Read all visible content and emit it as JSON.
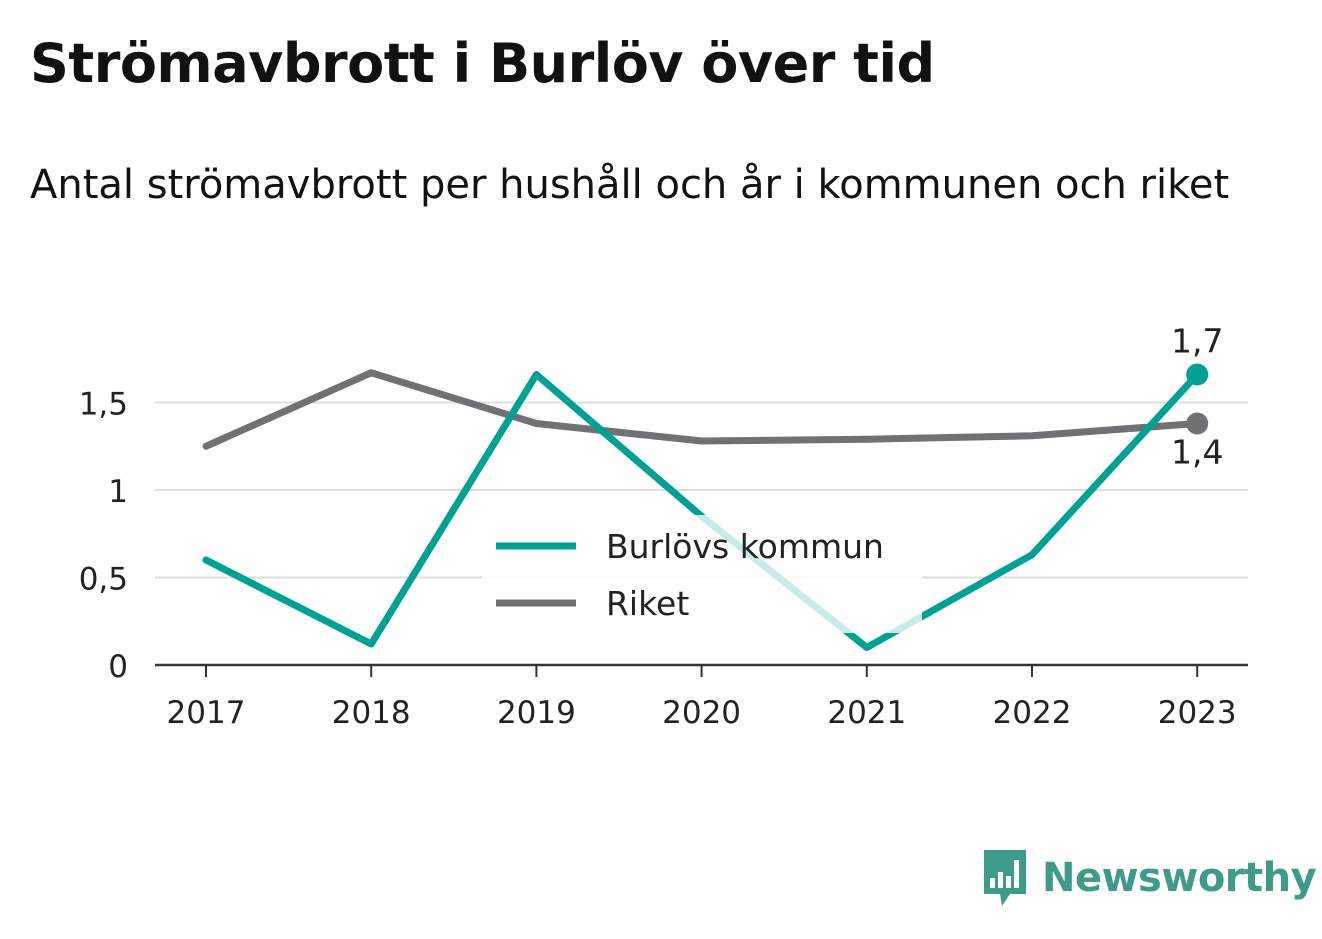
{
  "page": {
    "title": "Strömavbrott i Burlöv över tid",
    "subtitle": "Antal strömavbrott per hushåll och år i kommunen och riket",
    "logo_text": "Newsworthy",
    "logo_icon": "bar-chart-speech-bubble-icon"
  },
  "chart_data": {
    "type": "line",
    "x": [
      "2017",
      "2018",
      "2019",
      "2020",
      "2021",
      "2022",
      "2023"
    ],
    "ylim": [
      0,
      1.7
    ],
    "yticks": [
      0,
      0.5,
      1,
      1.5
    ],
    "ytick_labels": [
      "0",
      "0,5",
      "1",
      "1,5"
    ],
    "grid": true,
    "legend_position": "center",
    "series": [
      {
        "name": "Burlövs kommun",
        "color": "#00a195",
        "values": [
          0.6,
          0.12,
          1.66,
          0.85,
          0.1,
          0.63,
          1.66
        ],
        "end_label": "1,7"
      },
      {
        "name": "Riket",
        "color": "#707075",
        "values": [
          1.25,
          1.67,
          1.38,
          1.28,
          1.29,
          1.31,
          1.38
        ],
        "end_label": "1,4"
      }
    ]
  }
}
